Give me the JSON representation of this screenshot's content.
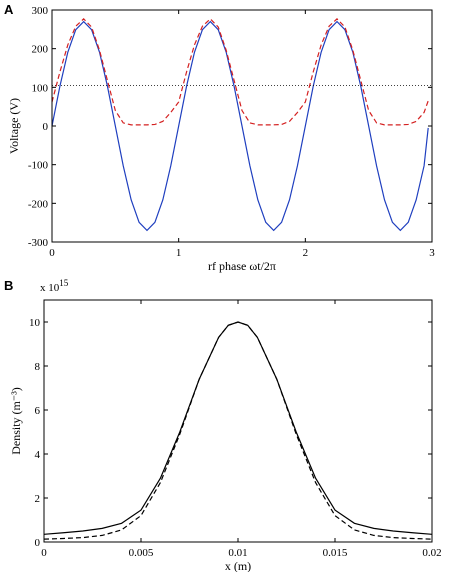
{
  "chart_data": [
    {
      "panel_label": "A",
      "type": "line",
      "xlabel": "rf phase ωt/2π",
      "ylabel": "Voltage (V)",
      "xlim": [
        0,
        3
      ],
      "ylim": [
        -300,
        300
      ],
      "x_ticks": [
        "0",
        "1",
        "2",
        "3"
      ],
      "y_ticks": [
        "-300",
        "-200",
        "-100",
        "0",
        "100",
        "200",
        "300"
      ],
      "grid": false,
      "legend": "none",
      "series": [
        {
          "style": "solid",
          "color": "#1f3fbf",
          "x": [
            0,
            0.0625,
            0.125,
            0.1875,
            0.25,
            0.3125,
            0.375,
            0.4375,
            0.5,
            0.5625,
            0.625,
            0.6875,
            0.75,
            0.8125,
            0.875,
            0.9375,
            1.0,
            1.0625,
            1.125,
            1.1875,
            1.25,
            1.3125,
            1.375,
            1.4375,
            1.5,
            1.5625,
            1.625,
            1.6875,
            1.75,
            1.8125,
            1.875,
            1.9375,
            2.0,
            2.0625,
            2.125,
            2.1875,
            2.25,
            2.3125,
            2.375,
            2.4375,
            2.5,
            2.5625,
            2.625,
            2.6875,
            2.75,
            2.8125,
            2.875,
            2.9375,
            2.97
          ],
          "y": [
            0,
            103,
            191,
            249,
            270,
            249,
            191,
            103,
            0,
            -103,
            -191,
            -249,
            -270,
            -249,
            -191,
            -103,
            0,
            103,
            191,
            249,
            270,
            249,
            191,
            103,
            0,
            -103,
            -191,
            -249,
            -270,
            -249,
            -191,
            -103,
            0,
            103,
            191,
            249,
            270,
            249,
            191,
            103,
            0,
            -103,
            -191,
            -249,
            -270,
            -249,
            -191,
            -103,
            -5
          ]
        },
        {
          "style": "dashed",
          "color": "#d42020",
          "x": [
            0,
            0.0625,
            0.125,
            0.1875,
            0.25,
            0.3125,
            0.375,
            0.4375,
            0.5,
            0.5625,
            0.625,
            0.6875,
            0.75,
            0.8125,
            0.875,
            0.9375,
            1.0,
            1.0625,
            1.125,
            1.1875,
            1.25,
            1.3125,
            1.375,
            1.4375,
            1.5,
            1.5625,
            1.625,
            1.6875,
            1.75,
            1.8125,
            1.875,
            1.9375,
            2.0,
            2.0625,
            2.125,
            2.1875,
            2.25,
            2.3125,
            2.375,
            2.4375,
            2.5,
            2.5625,
            2.625,
            2.6875,
            2.75,
            2.8125,
            2.875,
            2.9375,
            2.97
          ],
          "y": [
            62,
            140,
            210,
            258,
            277,
            256,
            196,
            118,
            40,
            8,
            3,
            3,
            3,
            4,
            12,
            35,
            62,
            140,
            210,
            258,
            277,
            256,
            196,
            118,
            40,
            8,
            3,
            3,
            3,
            4,
            12,
            35,
            62,
            140,
            210,
            258,
            277,
            256,
            196,
            118,
            40,
            8,
            3,
            3,
            3,
            4,
            12,
            35,
            65
          ]
        },
        {
          "style": "dotted",
          "color": "#000000",
          "x": [
            0,
            3
          ],
          "y": [
            105,
            105
          ]
        }
      ]
    },
    {
      "panel_label": "B",
      "type": "line",
      "xlabel": "x (m)",
      "ylabel": "Density (m⁻³)",
      "exponent_label": "x 10",
      "exponent_power": "15",
      "xlim": [
        0,
        0.02
      ],
      "ylim": [
        0,
        11
      ],
      "x_ticks": [
        "0",
        "0.005",
        "0.01",
        "0.015",
        "0.02"
      ],
      "y_ticks": [
        "0",
        "2",
        "4",
        "6",
        "8",
        "10"
      ],
      "grid": false,
      "legend": "none",
      "series": [
        {
          "style": "solid",
          "color": "#000000",
          "x": [
            0,
            0.001,
            0.002,
            0.003,
            0.004,
            0.005,
            0.006,
            0.007,
            0.008,
            0.009,
            0.0095,
            0.01,
            0.0105,
            0.011,
            0.012,
            0.013,
            0.014,
            0.015,
            0.016,
            0.017,
            0.018,
            0.019,
            0.02
          ],
          "y": [
            0.35,
            0.42,
            0.5,
            0.62,
            0.85,
            1.45,
            2.9,
            5.0,
            7.4,
            9.3,
            9.85,
            10.0,
            9.85,
            9.3,
            7.4,
            5.0,
            2.9,
            1.45,
            0.85,
            0.62,
            0.5,
            0.42,
            0.35
          ]
        },
        {
          "style": "dashed",
          "color": "#000000",
          "x": [
            0,
            0.001,
            0.002,
            0.003,
            0.004,
            0.005,
            0.006,
            0.007,
            0.008,
            0.009,
            0.0095,
            0.01,
            0.0105,
            0.011,
            0.012,
            0.013,
            0.014,
            0.015,
            0.016,
            0.017,
            0.018,
            0.019,
            0.02
          ],
          "y": [
            0.13,
            0.16,
            0.2,
            0.3,
            0.55,
            1.2,
            2.7,
            4.9,
            7.4,
            9.3,
            9.85,
            10.0,
            9.85,
            9.3,
            7.4,
            4.9,
            2.7,
            1.2,
            0.55,
            0.3,
            0.2,
            0.16,
            0.13
          ]
        }
      ]
    }
  ]
}
